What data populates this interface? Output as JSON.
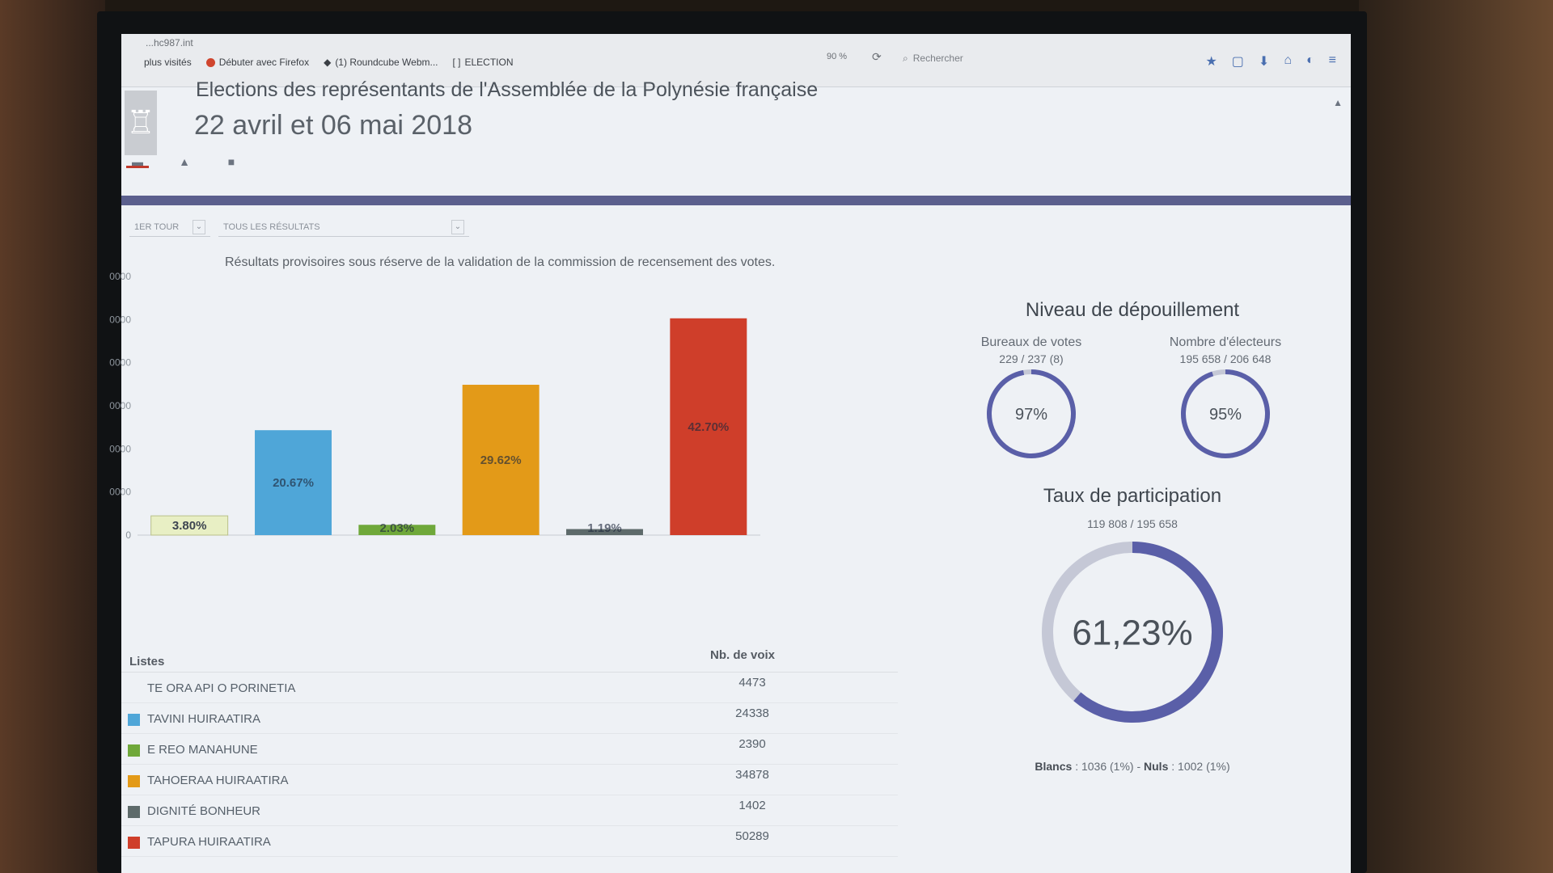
{
  "browser": {
    "url": "...hc987.int",
    "bookmarks": [
      "plus visités",
      "Débuter avec Firefox",
      "(1) Roundcube Webm...",
      "ELECTION"
    ],
    "zoom": "90 %",
    "search_placeholder": "Rechercher"
  },
  "page": {
    "title": "Elections des représentants de l'Assemblée de la Polynésie française",
    "subtitle": "22 avril et 06 mai 2018",
    "notice": "Résultats provisoires sous réserve de la validation de la commission de recensement des votes."
  },
  "filters": {
    "round": "1ER TOUR",
    "scope": "TOUS LES RÉSULTATS"
  },
  "colors": {
    "te_ora_api": "#e8efc4",
    "tavini": "#4fa6d8",
    "e_reo": "#6fa83a",
    "tahoeraa": "#e39a18",
    "dignite": "#5d6a6a",
    "tapura": "#cf3e2a",
    "gauge_track": "#c5c8d6",
    "gauge_fill": "#5a5fa8"
  },
  "chart_data": {
    "type": "bar",
    "categories": [
      "TE ORA API O PORINETIA",
      "TAVINI HUIRAATIRA",
      "E REO MANAHUNE",
      "TAHOERAA HUIRAATIRA",
      "DIGNITÉ BONHEUR",
      "TAPURA HUIRAATIRA"
    ],
    "values": [
      4473,
      24338,
      2390,
      34878,
      1402,
      50289
    ],
    "labels": [
      "3.80%",
      "20.67%",
      "2.03%",
      "29.62%",
      "1.19%",
      "42.70%"
    ],
    "yticks": [
      "0",
      "0000",
      "0000",
      "0000",
      "0000",
      "0000",
      "0000"
    ],
    "ylim": [
      0,
      60000
    ]
  },
  "table": {
    "col_list": "Listes",
    "col_votes": "Nb. de voix",
    "rows": [
      {
        "name": "TE ORA API O PORINETIA",
        "votes": "4473"
      },
      {
        "name": "TAVINI HUIRAATIRA",
        "votes": "24338"
      },
      {
        "name": "E REO MANAHUNE",
        "votes": "2390"
      },
      {
        "name": "TAHOERAA HUIRAATIRA",
        "votes": "34878"
      },
      {
        "name": "DIGNITÉ BONHEUR",
        "votes": "1402"
      },
      {
        "name": "TAPURA HUIRAATIRA",
        "votes": "50289"
      }
    ]
  },
  "depouillement": {
    "title": "Niveau de dépouillement",
    "bureaux": {
      "label": "Bureaux de votes",
      "detail": "229 / 237 (8)",
      "percent_text": "97%",
      "fraction": 0.97
    },
    "electeurs": {
      "label": "Nombre d'électeurs",
      "detail": "195 658 / 206 648",
      "percent_text": "95%",
      "fraction": 0.95
    }
  },
  "participation": {
    "title": "Taux de participation",
    "detail": "119 808 / 195 658",
    "percent_text": "61,23%",
    "fraction": 0.6123,
    "blancs_label": "Blancs",
    "blancs_value": ": 1036 (1%) -",
    "nuls_label": "Nuls",
    "nuls_value": ": 1002 (1%)"
  }
}
